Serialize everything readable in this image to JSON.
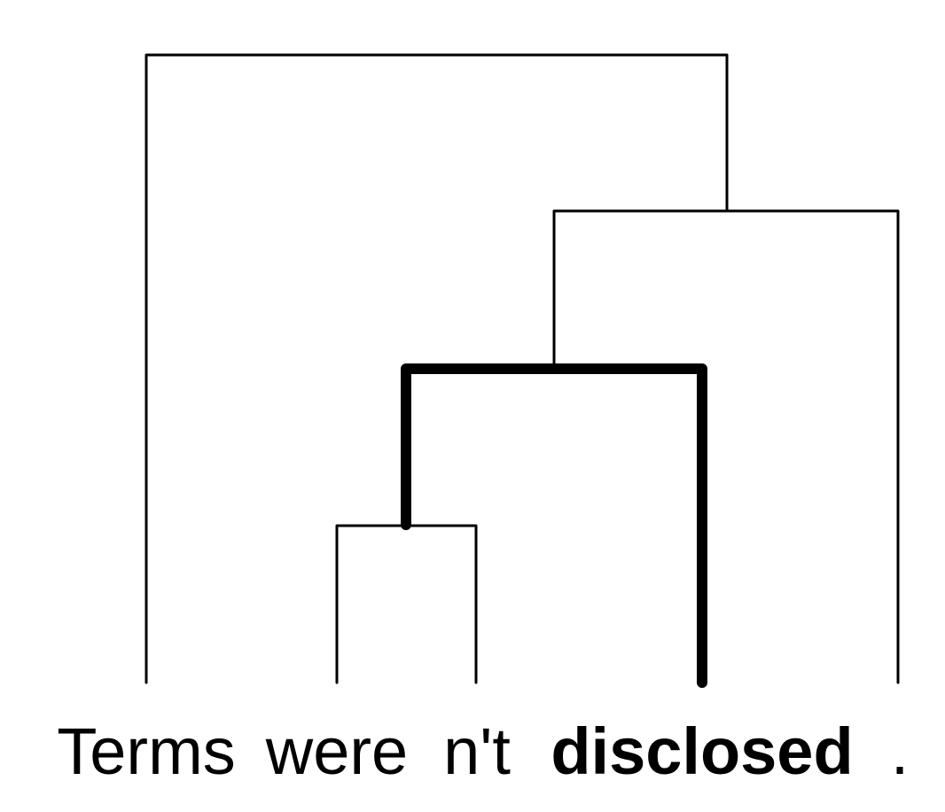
{
  "diagram": {
    "type": "dependency-tree",
    "tokens": [
      {
        "text": "Terms",
        "bold": false
      },
      {
        "text": "were",
        "bold": false
      },
      {
        "text": "n't",
        "bold": false
      },
      {
        "text": "disclosed",
        "bold": true
      },
      {
        "text": ".",
        "bold": false
      }
    ],
    "highlighted_path": [
      "n't",
      "disclosed"
    ],
    "colors": {
      "edge": "#000000",
      "text": "#000000",
      "background": "#ffffff"
    }
  }
}
